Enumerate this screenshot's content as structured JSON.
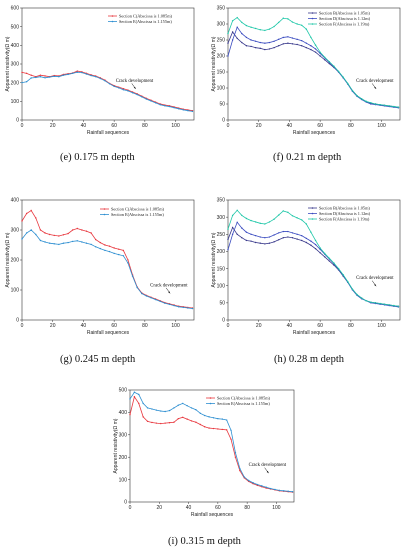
{
  "colors": {
    "section_b": "#3a3a8c",
    "section_c": "#e8383f",
    "section_d": "#3b4cc0",
    "section_e": "#2e8fd1",
    "section_f": "#1fc7a8",
    "axis": "#333333"
  },
  "captions": [
    {
      "prefix": "(e)",
      "text": "0.175 m depth"
    },
    {
      "prefix": "(f)",
      "text": "0.21 m depth"
    },
    {
      "prefix": "(g)",
      "text": "0.245 m depth"
    },
    {
      "prefix": "(h)",
      "text": "0.28 m depth"
    },
    {
      "prefix": "(i)",
      "text": "0.315 m depth"
    }
  ],
  "chart_data": [
    {
      "id": "e",
      "type": "line",
      "title": "",
      "xlabel": "Rainfall sequences",
      "ylabel": "Apparent resistivity(Ω m)",
      "xlim": [
        0,
        112
      ],
      "ylim": [
        0,
        600
      ],
      "xticks": [
        0,
        20,
        40,
        60,
        80,
        100
      ],
      "yticks": [
        0,
        100,
        200,
        300,
        400,
        500,
        600
      ],
      "legend_position": "top-right",
      "annotation": "Crack development",
      "x": [
        0,
        3,
        6,
        9,
        12,
        15,
        18,
        21,
        24,
        27,
        30,
        33,
        36,
        39,
        42,
        45,
        48,
        51,
        54,
        57,
        60,
        63,
        66,
        69,
        72,
        75,
        78,
        81,
        84,
        87,
        90,
        93,
        96,
        99,
        102,
        105,
        108,
        111
      ],
      "series": [
        {
          "name": "Section C(Abscissa is 1.085m)",
          "color_key": "section_c",
          "values": [
            255,
            250,
            240,
            232,
            240,
            236,
            232,
            238,
            236,
            244,
            248,
            252,
            262,
            258,
            250,
            242,
            236,
            226,
            214,
            196,
            184,
            176,
            168,
            160,
            150,
            140,
            128,
            116,
            106,
            96,
            86,
            80,
            76,
            70,
            64,
            58,
            54,
            50
          ]
        },
        {
          "name": "Section E(Abscissa is 1.155m)",
          "color_key": "section_e",
          "values": [
            200,
            205,
            225,
            228,
            232,
            226,
            230,
            234,
            232,
            240,
            244,
            250,
            256,
            254,
            246,
            238,
            232,
            222,
            210,
            194,
            180,
            172,
            162,
            156,
            146,
            136,
            124,
            112,
            102,
            92,
            82,
            76,
            72,
            66,
            60,
            54,
            50,
            46
          ]
        }
      ]
    },
    {
      "id": "f",
      "type": "line",
      "title": "",
      "xlabel": "Rainfall sequences",
      "ylabel": "Apparent resistivity(Ω m)",
      "xlim": [
        0,
        112
      ],
      "ylim": [
        0,
        350
      ],
      "xticks": [
        0,
        20,
        40,
        60,
        80,
        100
      ],
      "yticks": [
        0,
        50,
        100,
        150,
        200,
        250,
        300,
        350
      ],
      "legend_position": "top-right",
      "annotation": "Crack development",
      "x": [
        0,
        3,
        6,
        9,
        12,
        15,
        18,
        21,
        24,
        27,
        30,
        33,
        36,
        39,
        42,
        45,
        48,
        51,
        54,
        57,
        60,
        63,
        66,
        69,
        72,
        75,
        78,
        81,
        84,
        87,
        90,
        93,
        96,
        99,
        102,
        105,
        108,
        111
      ],
      "series": [
        {
          "name": "Section B(Abscissa is 1.05m)",
          "color_key": "section_b",
          "values": [
            240,
            275,
            255,
            242,
            232,
            230,
            226,
            224,
            220,
            222,
            226,
            232,
            238,
            240,
            238,
            236,
            232,
            226,
            220,
            212,
            200,
            188,
            176,
            164,
            150,
            132,
            114,
            92,
            76,
            66,
            58,
            52,
            50,
            48,
            46,
            44,
            42,
            40
          ]
        },
        {
          "name": "Section D(Abscissa is 1.12m)",
          "color_key": "section_d",
          "values": [
            200,
            250,
            290,
            270,
            258,
            250,
            246,
            242,
            240,
            242,
            246,
            252,
            258,
            260,
            256,
            252,
            248,
            240,
            232,
            222,
            208,
            194,
            180,
            166,
            150,
            132,
            112,
            90,
            74,
            64,
            56,
            50,
            48,
            46,
            44,
            42,
            40,
            38
          ]
        },
        {
          "name": "Section F(Abscissa is 1.19m)",
          "color_key": "section_f",
          "values": [
            270,
            310,
            320,
            305,
            295,
            290,
            286,
            282,
            280,
            284,
            292,
            305,
            318,
            316,
            306,
            300,
            296,
            284,
            258,
            234,
            212,
            196,
            182,
            168,
            152,
            134,
            114,
            92,
            76,
            66,
            58,
            54,
            50,
            48,
            46,
            44,
            42,
            40
          ]
        }
      ]
    },
    {
      "id": "g",
      "type": "line",
      "title": "",
      "xlabel": "Rainfall sequences",
      "ylabel": "Apparent resistivity(Ω m)",
      "xlim": [
        0,
        112
      ],
      "ylim": [
        0,
        400
      ],
      "xticks": [
        0,
        20,
        40,
        60,
        80,
        100
      ],
      "yticks": [
        0,
        100,
        200,
        300,
        400
      ],
      "legend_position": "top-right",
      "annotation": "Crack development",
      "x": [
        0,
        3,
        6,
        9,
        12,
        15,
        18,
        21,
        24,
        27,
        30,
        33,
        36,
        39,
        42,
        45,
        48,
        51,
        54,
        57,
        60,
        63,
        66,
        69,
        72,
        75,
        78,
        81,
        84,
        87,
        90,
        93,
        96,
        99,
        102,
        105,
        108,
        111
      ],
      "series": [
        {
          "name": "Section C(Abscissa is 1.085m)",
          "color_key": "section_c",
          "values": [
            330,
            355,
            365,
            340,
            300,
            290,
            285,
            282,
            280,
            284,
            288,
            300,
            305,
            300,
            296,
            290,
            268,
            258,
            250,
            246,
            240,
            236,
            232,
            200,
            150,
            110,
            90,
            82,
            76,
            70,
            64,
            58,
            54,
            50,
            46,
            44,
            42,
            40
          ]
        },
        {
          "name": "Section E(Abscissa is 1.155m)",
          "color_key": "section_e",
          "values": [
            270,
            290,
            300,
            285,
            265,
            260,
            256,
            254,
            252,
            256,
            258,
            262,
            264,
            260,
            256,
            252,
            244,
            238,
            232,
            228,
            222,
            218,
            214,
            190,
            146,
            108,
            88,
            80,
            74,
            68,
            62,
            56,
            52,
            48,
            44,
            42,
            40,
            38
          ]
        }
      ]
    },
    {
      "id": "h",
      "type": "line",
      "title": "",
      "xlabel": "Rainfall sequences",
      "ylabel": "Apparent resistivity(Ω m)",
      "xlim": [
        0,
        112
      ],
      "ylim": [
        0,
        350
      ],
      "xticks": [
        0,
        20,
        40,
        60,
        80,
        100
      ],
      "yticks": [
        0,
        50,
        100,
        150,
        200,
        250,
        300,
        350
      ],
      "legend_position": "top-right",
      "annotation": "Crack development",
      "x": [
        0,
        3,
        6,
        9,
        12,
        15,
        18,
        21,
        24,
        27,
        30,
        33,
        36,
        39,
        42,
        45,
        48,
        51,
        54,
        57,
        60,
        63,
        66,
        69,
        72,
        75,
        78,
        81,
        84,
        87,
        90,
        93,
        96,
        99,
        102,
        105,
        108,
        111
      ],
      "series": [
        {
          "name": "Section B(Abscissa is 1.05m)",
          "color_key": "section_b",
          "values": [
            235,
            270,
            250,
            240,
            232,
            230,
            226,
            224,
            222,
            224,
            228,
            234,
            240,
            242,
            240,
            236,
            232,
            226,
            218,
            208,
            196,
            184,
            172,
            160,
            146,
            128,
            110,
            90,
            74,
            64,
            56,
            52,
            50,
            48,
            46,
            44,
            42,
            40
          ]
        },
        {
          "name": "Section D(Abscissa is 1.12m)",
          "color_key": "section_d",
          "values": [
            205,
            250,
            285,
            268,
            256,
            250,
            246,
            242,
            240,
            242,
            248,
            254,
            258,
            258,
            254,
            250,
            246,
            238,
            230,
            220,
            206,
            192,
            178,
            164,
            148,
            130,
            110,
            88,
            72,
            62,
            56,
            50,
            48,
            46,
            44,
            42,
            40,
            38
          ]
        },
        {
          "name": "Section F(Abscissa is 1.19m)",
          "color_key": "section_f",
          "values": [
            265,
            305,
            320,
            305,
            296,
            290,
            286,
            282,
            280,
            286,
            294,
            306,
            318,
            314,
            304,
            298,
            292,
            280,
            256,
            232,
            210,
            194,
            180,
            166,
            150,
            132,
            112,
            90,
            74,
            64,
            56,
            52,
            50,
            48,
            46,
            44,
            42,
            40
          ]
        }
      ]
    },
    {
      "id": "i",
      "type": "line",
      "title": "",
      "xlabel": "Rainfall sequences",
      "ylabel": "Apparent resistivity(Ω m)",
      "xlim": [
        0,
        112
      ],
      "ylim": [
        0,
        500
      ],
      "xticks": [
        0,
        20,
        40,
        60,
        80,
        100
      ],
      "yticks": [
        0,
        100,
        200,
        300,
        400,
        500
      ],
      "legend_position": "top-right",
      "annotation": "Crack development",
      "x": [
        0,
        3,
        6,
        9,
        12,
        15,
        18,
        21,
        24,
        27,
        30,
        33,
        36,
        39,
        42,
        45,
        48,
        51,
        54,
        57,
        60,
        63,
        66,
        69,
        72,
        75,
        78,
        81,
        84,
        87,
        90,
        93,
        96,
        99,
        102,
        105,
        108,
        111
      ],
      "series": [
        {
          "name": "Section C(Abscissa is 1.085m)",
          "color_key": "section_c",
          "values": [
            390,
            470,
            440,
            380,
            360,
            355,
            352,
            350,
            352,
            354,
            356,
            372,
            378,
            370,
            362,
            356,
            346,
            336,
            330,
            328,
            326,
            324,
            322,
            280,
            200,
            140,
            108,
            92,
            82,
            74,
            68,
            62,
            58,
            54,
            50,
            48,
            46,
            44
          ]
        },
        {
          "name": "Section E(Abscissa is 1.155m)",
          "color_key": "section_e",
          "values": [
            460,
            490,
            480,
            440,
            420,
            415,
            410,
            406,
            404,
            408,
            420,
            432,
            440,
            430,
            420,
            412,
            396,
            386,
            380,
            376,
            372,
            370,
            366,
            320,
            220,
            150,
            112,
            96,
            86,
            78,
            72,
            66,
            60,
            56,
            52,
            50,
            48,
            46
          ]
        }
      ]
    }
  ]
}
